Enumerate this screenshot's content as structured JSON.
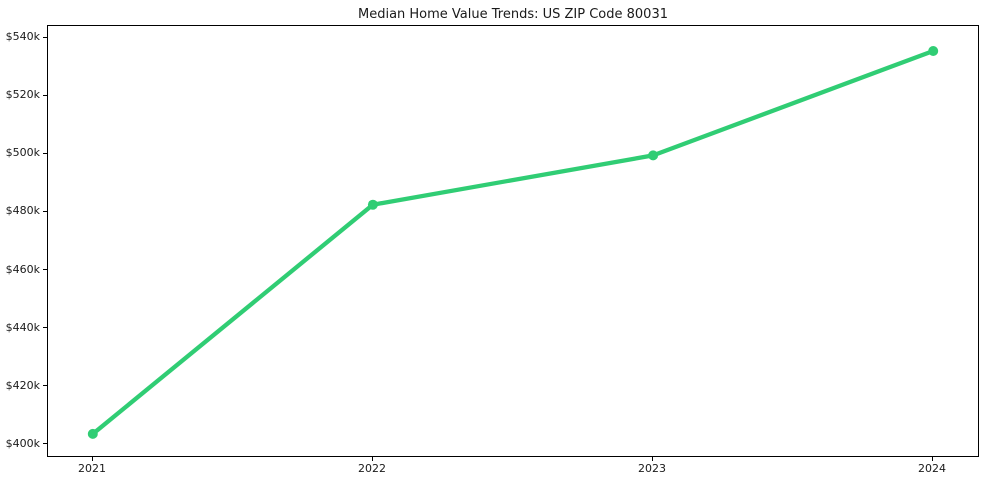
{
  "chart_data": {
    "type": "line",
    "title": "Median Home Value Trends: US ZIP Code 80031",
    "x_categories": [
      "2021",
      "2022",
      "2023",
      "2024"
    ],
    "series": [
      {
        "name": "median_home_value",
        "values": [
          403500,
          482500,
          499500,
          535500
        ]
      }
    ],
    "y_tick_values": [
      400000,
      420000,
      440000,
      460000,
      480000,
      500000,
      520000,
      540000
    ],
    "y_tick_labels": [
      "$400k",
      "$420k",
      "$440k",
      "$460k",
      "$480k",
      "$500k",
      "$520k",
      "$540k"
    ],
    "ylim": [
      395900,
      544100
    ],
    "xlim": [
      -0.16,
      3.16
    ],
    "grid": false,
    "legend": false,
    "line_color": "#30cd74",
    "marker": "circle",
    "line_width": 4.3,
    "marker_radius": 5,
    "frame_color": "#000000",
    "text_color": "#1a1a1a",
    "background_color": "#ffffff"
  }
}
